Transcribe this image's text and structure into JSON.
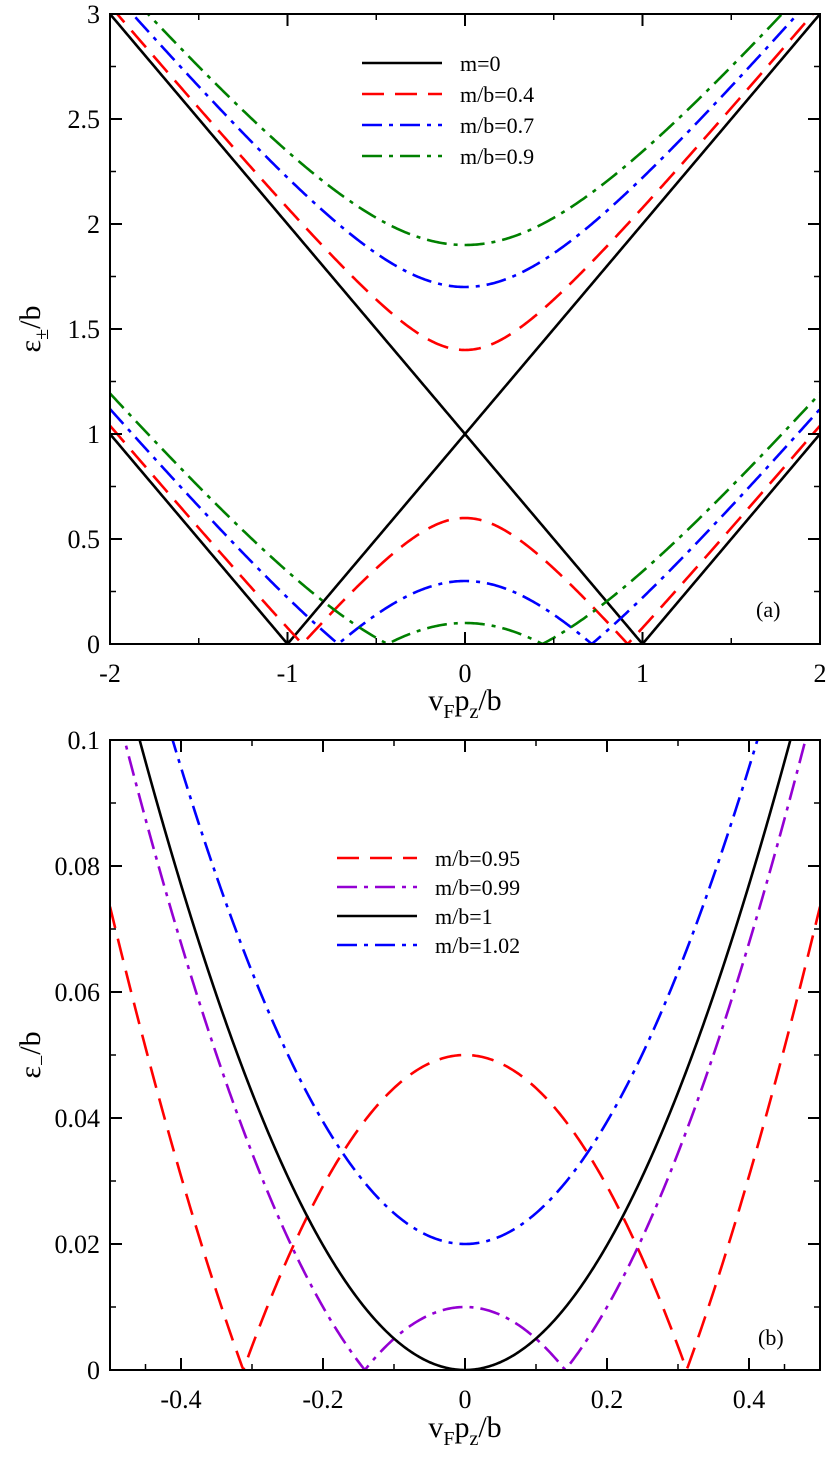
{
  "colors": {
    "black": "#000000",
    "red": "#ff0000",
    "blue": "#0000ff",
    "green": "#008000",
    "purple": "#9400d3"
  },
  "chart_data": [
    {
      "type": "line",
      "panel_tag": "(a)",
      "xlabel": "vFpz/b",
      "xlabel_parts": {
        "base": "v",
        "sub": "F",
        "mid": "p",
        "sub2": "z",
        "tail": "/b"
      },
      "ylabel": "ε±/b",
      "ylabel_parts": {
        "base": "ε",
        "sub": "±",
        "tail": "/b"
      },
      "xlim": [
        -2,
        2
      ],
      "ylim": [
        0,
        3
      ],
      "xticks": [
        -2,
        -1,
        0,
        1,
        2
      ],
      "xtick_labels": [
        "-2",
        "-1",
        "0",
        "1",
        "2"
      ],
      "yticks": [
        0,
        0.5,
        1,
        1.5,
        2,
        2.5,
        3
      ],
      "ytick_labels": [
        "0",
        "0.5",
        "1",
        "1.5",
        "2",
        "2.5",
        "3"
      ],
      "legend_position": "top-center",
      "grid": false,
      "series": [
        {
          "name": "m=0",
          "m": 0,
          "color": "black",
          "dash": "solid",
          "x": [
            -2,
            -1.5,
            -1,
            -0.5,
            0,
            0.5,
            1,
            1.5,
            2
          ],
          "upper": [
            3,
            2.5,
            2,
            1.5,
            1,
            1.5,
            2,
            2.5,
            3
          ],
          "lower": [
            1,
            0.5,
            0,
            0.5,
            1,
            0.5,
            0,
            0.5,
            1
          ]
        },
        {
          "name": "m/b=0.4",
          "m": 0.4,
          "color": "red",
          "dash": "long-dash",
          "x": [
            -2,
            -1.5,
            -1,
            -0.5,
            0,
            0.5,
            1,
            1.5,
            2
          ],
          "upper": [
            3.04,
            2.55,
            2.08,
            1.64,
            1.4,
            1.64,
            2.08,
            2.55,
            3.04
          ],
          "lower": [
            1.04,
            0.55,
            0.08,
            0.36,
            0.6,
            0.36,
            0.08,
            0.55,
            1.04
          ]
        },
        {
          "name": "m/b=0.7",
          "m": 0.7,
          "color": "blue",
          "dash": "dash-dot",
          "x": [
            -2,
            -1.5,
            -1,
            -0.5,
            0,
            0.5,
            1,
            1.5,
            2
          ],
          "upper": [
            3.12,
            2.66,
            2.22,
            1.86,
            1.7,
            1.86,
            2.22,
            2.66,
            3.12
          ],
          "lower": [
            1.12,
            0.66,
            0.22,
            0.14,
            0.3,
            0.14,
            0.22,
            0.66,
            1.12
          ]
        },
        {
          "name": "m/b=0.9",
          "m": 0.9,
          "color": "green",
          "dash": "dash-dot",
          "x": [
            -2,
            -1.5,
            -1,
            -0.5,
            0,
            0.5,
            1,
            1.5,
            2
          ],
          "upper": [
            3.19,
            2.75,
            2.35,
            2.03,
            1.9,
            2.03,
            2.35,
            2.75,
            3.19
          ],
          "lower": [
            1.19,
            0.75,
            0.35,
            0.03,
            0.1,
            0.03,
            0.35,
            0.75,
            1.19
          ]
        }
      ]
    },
    {
      "type": "line",
      "panel_tag": "(b)",
      "xlabel": "vFpz/b",
      "xlabel_parts": {
        "base": "v",
        "sub": "F",
        "mid": "p",
        "sub2": "z",
        "tail": "/b"
      },
      "ylabel": "ε−/b",
      "ylabel_parts": {
        "base": "ε",
        "sub": "−",
        "tail": "/b"
      },
      "xlim": [
        -0.5,
        0.5
      ],
      "ylim": [
        0,
        0.1
      ],
      "xticks": [
        -0.4,
        -0.2,
        0,
        0.2,
        0.4
      ],
      "xtick_labels": [
        "-0.4",
        "-0.2",
        "0",
        "0.2",
        "0.4"
      ],
      "yticks": [
        0,
        0.02,
        0.04,
        0.06,
        0.08,
        0.1
      ],
      "ytick_labels": [
        "0",
        "0.02",
        "0.04",
        "0.06",
        "0.08",
        "0.1"
      ],
      "legend_position": "top-center",
      "grid": false,
      "series": [
        {
          "name": "m/b=0.95",
          "m": 0.95,
          "color": "red",
          "dash": "long-dash",
          "x": [
            -0.5,
            -0.4,
            -0.31,
            -0.2,
            -0.1,
            0,
            0.1,
            0.2,
            0.31,
            0.4,
            0.5
          ],
          "y": [
            0.074,
            0.035,
            0.0,
            0.031,
            0.045,
            0.05,
            0.045,
            0.031,
            0.0,
            0.035,
            0.074
          ]
        },
        {
          "name": "m/b=0.99",
          "m": 0.99,
          "color": "purple",
          "dash": "dash-dot",
          "x": [
            -0.5,
            -0.4,
            -0.3,
            -0.2,
            -0.14,
            0,
            0.14,
            0.2,
            0.3,
            0.4,
            0.5
          ],
          "y": [
            0.108,
            0.066,
            0.034,
            0.01,
            0.0,
            0.01,
            0.0,
            0.01,
            0.034,
            0.066,
            0.108
          ]
        },
        {
          "name": "m/b=1",
          "m": 1.0,
          "color": "black",
          "dash": "solid",
          "x": [
            -0.5,
            -0.4,
            -0.3,
            -0.2,
            -0.1,
            0,
            0.1,
            0.2,
            0.3,
            0.4,
            0.5
          ],
          "y": [
            0.118,
            0.077,
            0.044,
            0.02,
            0.005,
            0.0,
            0.005,
            0.02,
            0.044,
            0.077,
            0.118
          ]
        },
        {
          "name": "m/b=1.02",
          "m": 1.02,
          "color": "blue",
          "dash": "dash-dot",
          "x": [
            -0.5,
            -0.4,
            -0.3,
            -0.2,
            -0.1,
            0,
            0.1,
            0.2,
            0.3,
            0.4,
            0.5
          ],
          "y": [
            0.138,
            0.097,
            0.064,
            0.04,
            0.025,
            0.02,
            0.025,
            0.04,
            0.064,
            0.097,
            0.138
          ]
        }
      ]
    }
  ]
}
